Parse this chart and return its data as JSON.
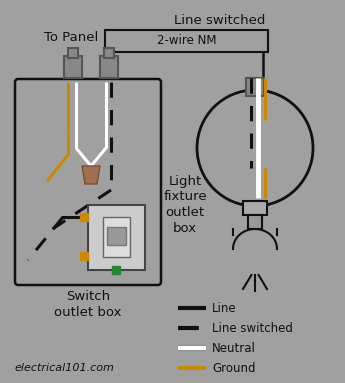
{
  "bg_color": "#a0a0a0",
  "wire_black": "#111111",
  "wire_white": "#ffffff",
  "wire_ground": "#cc8800",
  "wire_nut": "#a07050",
  "label_to_panel": "To Panel",
  "label_line_switched": "Line switched",
  "label_2wire": "2-wire NM",
  "label_switch_box": "Switch\noutlet box",
  "label_light_fixture": "Light\nfixture\noutlet\nbox",
  "label_website": "electrical101.com",
  "legend_line": "Line",
  "legend_line_sw": "Line switched",
  "legend_neutral": "Neutral",
  "legend_ground": "Ground"
}
